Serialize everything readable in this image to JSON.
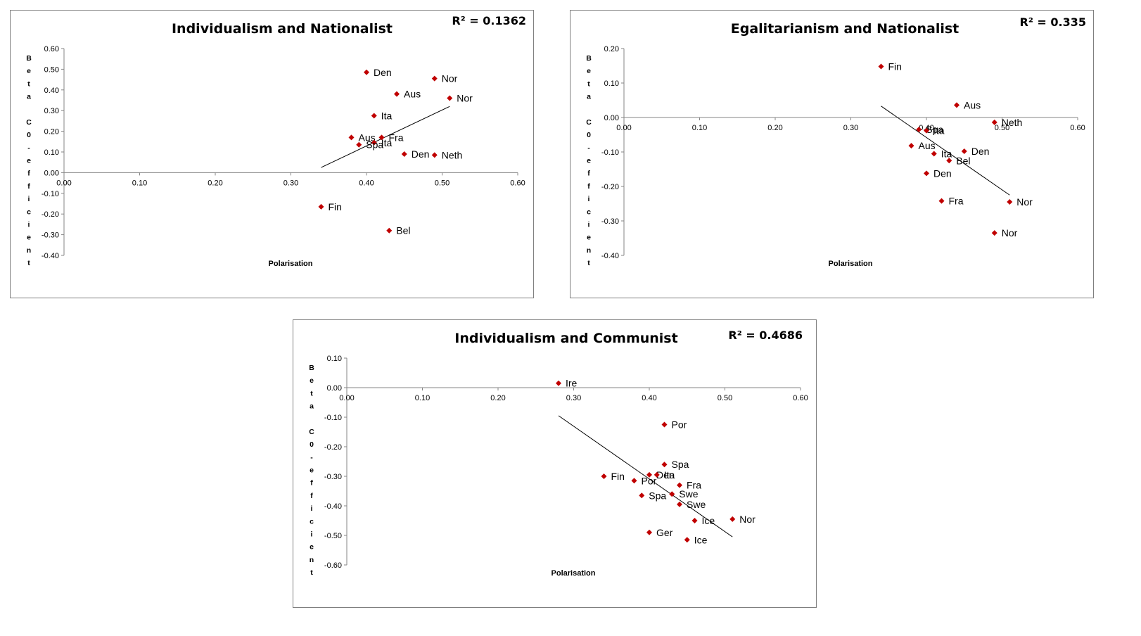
{
  "chart_data": [
    {
      "type": "scatter",
      "title": "Individualism and Nationalist",
      "r_squared": "R² = 0.1362",
      "xlabel": "Polarisation",
      "ylabel": "Beta C0-efficient",
      "xlim": [
        0,
        0.6
      ],
      "ylim": [
        -0.4,
        0.6
      ],
      "x_ticks": [
        "0.00",
        "0.10",
        "0.20",
        "0.30",
        "0.40",
        "0.50",
        "0.60"
      ],
      "y_ticks": [
        "0.60",
        "0.50",
        "0.40",
        "0.30",
        "0.20",
        "0.10",
        "0.00",
        "-0.10",
        "-0.20",
        "-0.30",
        "-0.40"
      ],
      "grid": false,
      "point_color": "#c00000",
      "points": [
        {
          "label": "Den",
          "x": 0.4,
          "y": 0.485
        },
        {
          "label": "Nor",
          "x": 0.49,
          "y": 0.455
        },
        {
          "label": "Aus",
          "x": 0.44,
          "y": 0.38
        },
        {
          "label": "Nor",
          "x": 0.51,
          "y": 0.36
        },
        {
          "label": "Ita",
          "x": 0.41,
          "y": 0.275
        },
        {
          "label": "Aus",
          "x": 0.38,
          "y": 0.17
        },
        {
          "label": "Fra",
          "x": 0.42,
          "y": 0.17
        },
        {
          "label": "Ita",
          "x": 0.41,
          "y": 0.145
        },
        {
          "label": "Spa",
          "x": 0.39,
          "y": 0.135
        },
        {
          "label": "Den",
          "x": 0.45,
          "y": 0.09
        },
        {
          "label": "Neth",
          "x": 0.49,
          "y": 0.085
        },
        {
          "label": "Fin",
          "x": 0.34,
          "y": -0.165
        },
        {
          "label": "Bel",
          "x": 0.43,
          "y": -0.28
        }
      ],
      "trendline": {
        "x": [
          0.34,
          0.51
        ],
        "y": [
          0.025,
          0.32
        ]
      }
    },
    {
      "type": "scatter",
      "title": "Egalitarianism and Nationalist",
      "r_squared": "R² = 0.335",
      "xlabel": "Polarisation",
      "ylabel": "Beta C0-efficient",
      "xlim": [
        0,
        0.6
      ],
      "ylim": [
        -0.4,
        0.2
      ],
      "x_ticks": [
        "0.00",
        "0.10",
        "0.20",
        "0.30",
        "0.40",
        "0.50",
        "0.60"
      ],
      "y_ticks": [
        "0.20",
        "0.10",
        "0.00",
        "-0.10",
        "-0.20",
        "-0.30",
        "-0.40"
      ],
      "grid": false,
      "point_color": "#c00000",
      "points": [
        {
          "label": "Fin",
          "x": 0.34,
          "y": 0.148
        },
        {
          "label": "Aus",
          "x": 0.44,
          "y": 0.036
        },
        {
          "label": "Neth",
          "x": 0.49,
          "y": -0.014
        },
        {
          "label": "Spa",
          "x": 0.39,
          "y": -0.035
        },
        {
          "label": "Ita",
          "x": 0.4,
          "y": -0.038
        },
        {
          "label": "Aus",
          "x": 0.38,
          "y": -0.082
        },
        {
          "label": "Den",
          "x": 0.45,
          "y": -0.098
        },
        {
          "label": "Ita",
          "x": 0.41,
          "y": -0.105
        },
        {
          "label": "Bel",
          "x": 0.43,
          "y": -0.125
        },
        {
          "label": "Den",
          "x": 0.4,
          "y": -0.162
        },
        {
          "label": "Fra",
          "x": 0.42,
          "y": -0.242
        },
        {
          "label": "Nor",
          "x": 0.51,
          "y": -0.245
        },
        {
          "label": "Nor",
          "x": 0.49,
          "y": -0.335
        }
      ],
      "trendline": {
        "x": [
          0.34,
          0.51
        ],
        "y": [
          0.033,
          -0.225
        ]
      }
    },
    {
      "type": "scatter",
      "title": "Individualism and Communist",
      "r_squared": "R² = 0.4686",
      "xlabel": "Polarisation",
      "ylabel": "Beta C0-efficient",
      "xlim": [
        0,
        0.6
      ],
      "ylim": [
        -0.6,
        0.1
      ],
      "x_ticks": [
        "0.00",
        "0.10",
        "0.20",
        "0.30",
        "0.40",
        "0.50",
        "0.60"
      ],
      "y_ticks": [
        "0.10",
        "0.00",
        "-0.10",
        "-0.20",
        "-0.30",
        "-0.40",
        "-0.50",
        "-0.60"
      ],
      "grid": false,
      "point_color": "#c00000",
      "points": [
        {
          "label": "Ire",
          "x": 0.28,
          "y": 0.015
        },
        {
          "label": "Por",
          "x": 0.42,
          "y": -0.125
        },
        {
          "label": "Spa",
          "x": 0.42,
          "y": -0.26
        },
        {
          "label": "Fin",
          "x": 0.34,
          "y": -0.3
        },
        {
          "label": "Den",
          "x": 0.4,
          "y": -0.295
        },
        {
          "label": "Ita",
          "x": 0.41,
          "y": -0.295
        },
        {
          "label": "Por",
          "x": 0.38,
          "y": -0.315
        },
        {
          "label": "Fra",
          "x": 0.44,
          "y": -0.33
        },
        {
          "label": "Swe",
          "x": 0.43,
          "y": -0.36
        },
        {
          "label": "Spa",
          "x": 0.39,
          "y": -0.365
        },
        {
          "label": "Swe",
          "x": 0.44,
          "y": -0.395
        },
        {
          "label": "Nor",
          "x": 0.51,
          "y": -0.445
        },
        {
          "label": "Ice",
          "x": 0.46,
          "y": -0.45
        },
        {
          "label": "Ger",
          "x": 0.4,
          "y": -0.49
        },
        {
          "label": "Ice",
          "x": 0.45,
          "y": -0.515
        }
      ],
      "trendline": {
        "x": [
          0.28,
          0.51
        ],
        "y": [
          -0.095,
          -0.505
        ]
      }
    }
  ]
}
